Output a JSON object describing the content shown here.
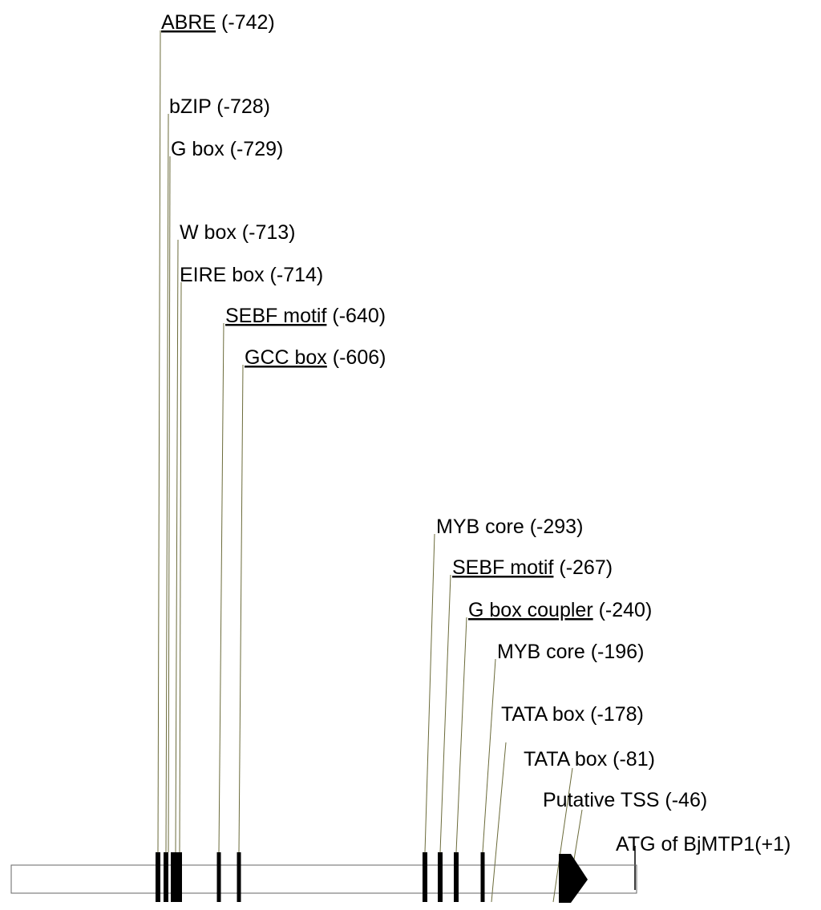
{
  "title": "",
  "elements": [
    {
      "id": "abre",
      "name": "ABRE",
      "position": "(-742)",
      "underlined": true
    },
    {
      "id": "bzip",
      "name": "bZIP",
      "position": "(-728)",
      "underlined": false
    },
    {
      "id": "gbox",
      "name": "G box",
      "position": "(-729)",
      "underlined": false
    },
    {
      "id": "wbox",
      "name": "W box",
      "position": "(-713)",
      "underlined": false
    },
    {
      "id": "eire",
      "name": "EIRE box",
      "position": "(-714)",
      "underlined": false
    },
    {
      "id": "sebf1",
      "name": "SEBF motif",
      "position": "(-640)",
      "underlined": true
    },
    {
      "id": "gcc",
      "name": "GCC box",
      "position": "(-606)",
      "underlined": true
    },
    {
      "id": "myb1",
      "name": "MYB core",
      "position": "(-293)",
      "underlined": false
    },
    {
      "id": "sebf2",
      "name": "SEBF motif",
      "position": "(-267)",
      "underlined": true
    },
    {
      "id": "gboxc",
      "name": "G box coupler",
      "position": "(-240)",
      "underlined": true
    },
    {
      "id": "myb2",
      "name": "MYB core",
      "position": "(-196)",
      "underlined": false
    },
    {
      "id": "tata1",
      "name": "TATA box",
      "position": "(-178)",
      "underlined": false
    },
    {
      "id": "tata2",
      "name": "TATA box",
      "position": "(-81)",
      "underlined": false
    },
    {
      "id": "tss",
      "name": "Putative TSS",
      "position": "(-46)",
      "underlined": false
    },
    {
      "id": "atg",
      "name": "ATG of BjMTP1",
      "position": "(+1)",
      "underlined": false
    }
  ],
  "colors": {
    "line": "#6b6b3a",
    "mark": "#000000",
    "bar": "#666666"
  }
}
